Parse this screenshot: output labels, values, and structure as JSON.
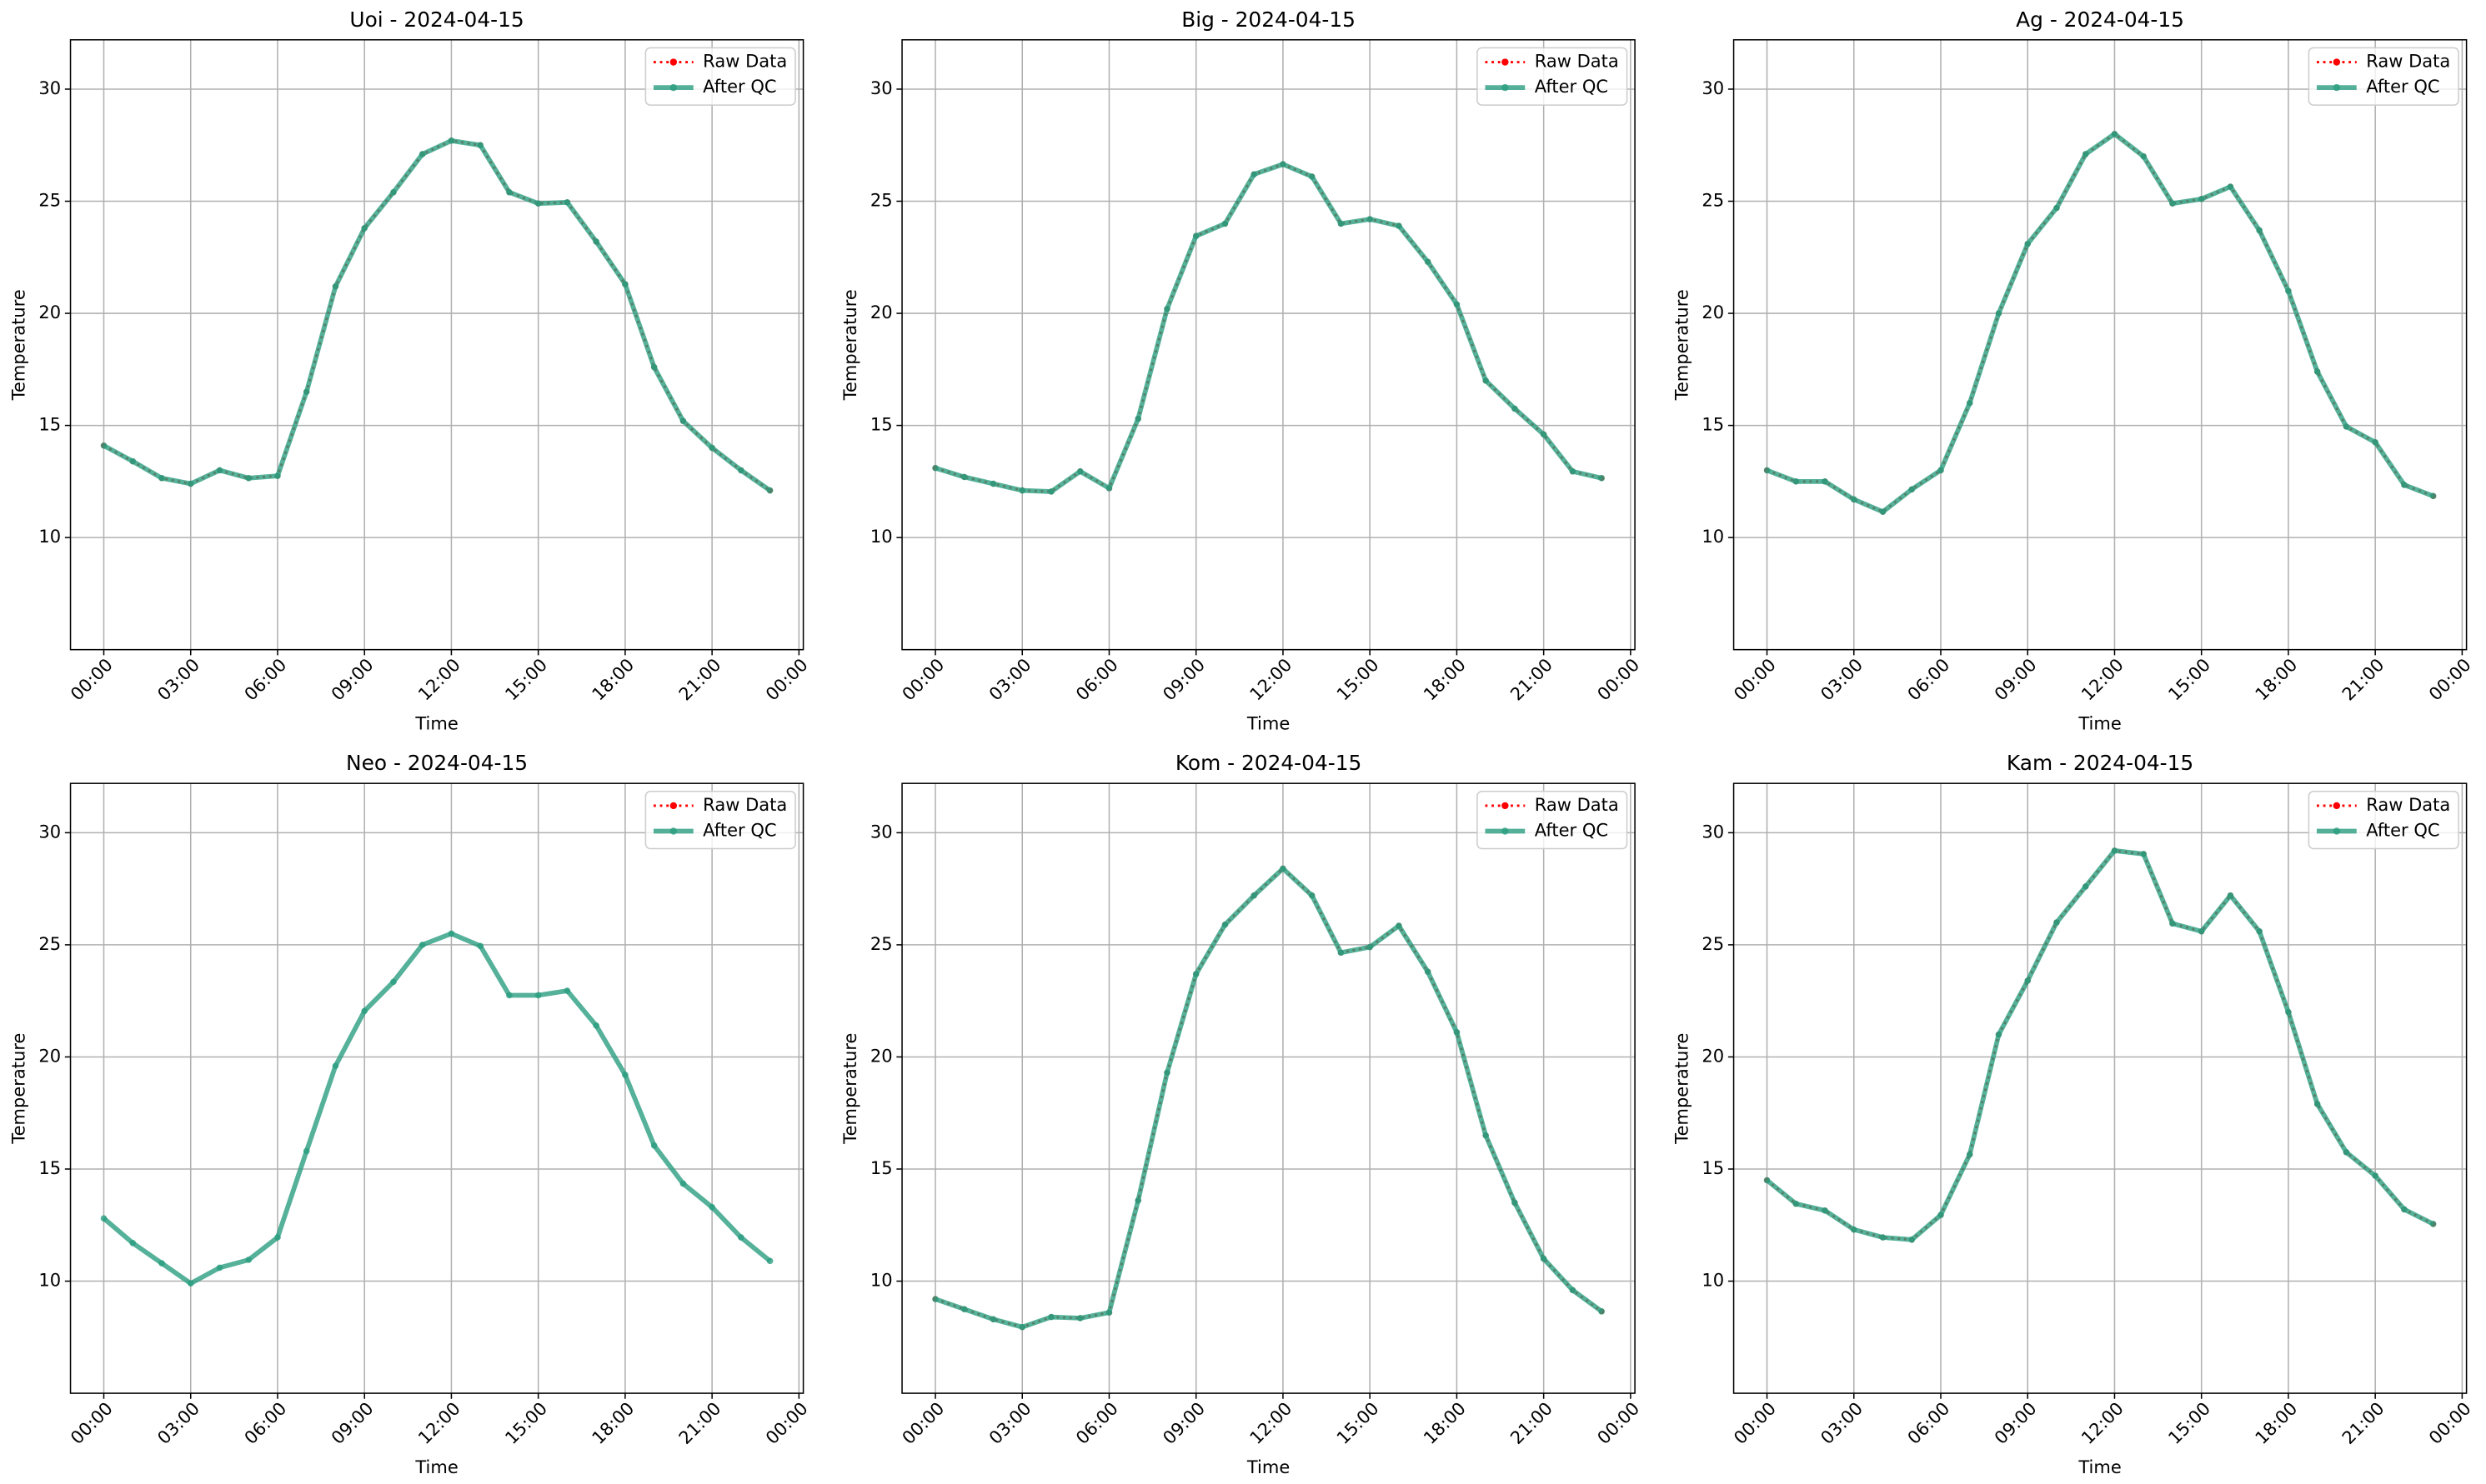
{
  "chart_data": [
    {
      "type": "line",
      "title": "Uoi - 2024-04-15",
      "xlabel": "Time",
      "ylabel": "Temperature",
      "x": [
        0,
        1,
        2,
        3,
        4,
        5,
        6,
        7,
        8,
        9,
        10,
        11,
        12,
        13,
        14,
        15,
        16,
        17,
        18,
        19,
        20,
        21,
        22,
        23
      ],
      "series": [
        {
          "name": "Raw Data",
          "color": "#ff0000",
          "values": [
            14.1,
            13.4,
            12.65,
            12.4,
            13.0,
            12.65,
            12.75,
            16.5,
            21.2,
            23.8,
            25.4,
            27.1,
            27.7,
            27.5,
            25.4,
            24.9,
            24.95,
            23.2,
            21.3,
            17.6,
            15.2,
            14.0,
            13.0,
            12.1
          ]
        },
        {
          "name": "After QC",
          "color": "#2a9d7f",
          "values": [
            14.1,
            13.4,
            12.65,
            12.4,
            13.0,
            12.65,
            12.75,
            16.5,
            21.2,
            23.8,
            25.4,
            27.1,
            27.7,
            27.5,
            25.4,
            24.9,
            24.95,
            23.2,
            21.3,
            17.6,
            15.2,
            14.0,
            13.0,
            12.1
          ]
        }
      ],
      "xlim": [
        -1.15,
        24.15
      ],
      "ylim": [
        5.0,
        32.2
      ],
      "xticks": [
        {
          "value": 0,
          "label": "00:00"
        },
        {
          "value": 3,
          "label": "03:00"
        },
        {
          "value": 6,
          "label": "06:00"
        },
        {
          "value": 9,
          "label": "09:00"
        },
        {
          "value": 12,
          "label": "12:00"
        },
        {
          "value": 15,
          "label": "15:00"
        },
        {
          "value": 18,
          "label": "18:00"
        },
        {
          "value": 21,
          "label": "21:00"
        },
        {
          "value": 24,
          "label": "00:00"
        }
      ],
      "yticks": [
        10,
        15,
        20,
        25,
        30
      ],
      "grid": true,
      "legend": "upper right"
    },
    {
      "type": "line",
      "title": "Big - 2024-04-15",
      "xlabel": "Time",
      "ylabel": "Temperature",
      "x": [
        0,
        1,
        2,
        3,
        4,
        5,
        6,
        7,
        8,
        9,
        10,
        11,
        12,
        13,
        14,
        15,
        16,
        17,
        18,
        19,
        20,
        21,
        22,
        23
      ],
      "series": [
        {
          "name": "Raw Data",
          "color": "#ff0000",
          "values": [
            13.1,
            12.7,
            12.4,
            12.1,
            12.05,
            12.95,
            12.2,
            15.3,
            20.2,
            23.45,
            24.0,
            26.2,
            26.65,
            26.1,
            24.0,
            24.2,
            23.9,
            22.3,
            20.4,
            17.0,
            15.75,
            14.6,
            12.95,
            12.65
          ]
        },
        {
          "name": "After QC",
          "color": "#2a9d7f",
          "values": [
            13.1,
            12.7,
            12.4,
            12.1,
            12.05,
            12.95,
            12.2,
            15.3,
            20.2,
            23.45,
            24.0,
            26.2,
            26.65,
            26.1,
            24.0,
            24.2,
            23.9,
            22.3,
            20.4,
            17.0,
            15.75,
            14.6,
            12.95,
            12.65
          ]
        }
      ],
      "xlim": [
        -1.15,
        24.15
      ],
      "ylim": [
        5.0,
        32.2
      ],
      "xticks": [
        {
          "value": 0,
          "label": "00:00"
        },
        {
          "value": 3,
          "label": "03:00"
        },
        {
          "value": 6,
          "label": "06:00"
        },
        {
          "value": 9,
          "label": "09:00"
        },
        {
          "value": 12,
          "label": "12:00"
        },
        {
          "value": 15,
          "label": "15:00"
        },
        {
          "value": 18,
          "label": "18:00"
        },
        {
          "value": 21,
          "label": "21:00"
        },
        {
          "value": 24,
          "label": "00:00"
        }
      ],
      "yticks": [
        10,
        15,
        20,
        25,
        30
      ],
      "grid": true,
      "legend": "upper right"
    },
    {
      "type": "line",
      "title": "Ag - 2024-04-15",
      "xlabel": "Time",
      "ylabel": "Temperature",
      "x": [
        0,
        1,
        2,
        3,
        4,
        5,
        6,
        7,
        8,
        9,
        10,
        11,
        12,
        13,
        14,
        15,
        16,
        17,
        18,
        19,
        20,
        21,
        22,
        23
      ],
      "series": [
        {
          "name": "Raw Data",
          "color": "#ff0000",
          "values": [
            13.0,
            12.5,
            12.5,
            11.7,
            11.15,
            12.15,
            13.0,
            16.0,
            20.0,
            23.1,
            24.7,
            27.1,
            28.0,
            27.0,
            24.9,
            25.1,
            25.65,
            23.7,
            21.0,
            17.4,
            14.95,
            14.25,
            12.35,
            11.85
          ]
        },
        {
          "name": "After QC",
          "color": "#2a9d7f",
          "values": [
            13.0,
            12.5,
            12.5,
            11.7,
            11.15,
            12.15,
            13.0,
            16.0,
            20.0,
            23.1,
            24.7,
            27.1,
            28.0,
            27.0,
            24.9,
            25.1,
            25.65,
            23.7,
            21.0,
            17.4,
            14.95,
            14.25,
            12.35,
            11.85
          ]
        }
      ],
      "xlim": [
        -1.15,
        24.15
      ],
      "ylim": [
        5.0,
        32.2
      ],
      "xticks": [
        {
          "value": 0,
          "label": "00:00"
        },
        {
          "value": 3,
          "label": "03:00"
        },
        {
          "value": 6,
          "label": "06:00"
        },
        {
          "value": 9,
          "label": "09:00"
        },
        {
          "value": 12,
          "label": "12:00"
        },
        {
          "value": 15,
          "label": "15:00"
        },
        {
          "value": 18,
          "label": "18:00"
        },
        {
          "value": 21,
          "label": "21:00"
        },
        {
          "value": 24,
          "label": "00:00"
        }
      ],
      "yticks": [
        10,
        15,
        20,
        25,
        30
      ],
      "grid": true,
      "legend": "upper right"
    },
    {
      "type": "line",
      "title": "Neo - 2024-04-15",
      "xlabel": "Time",
      "ylabel": "Temperature",
      "x": [
        0,
        1,
        2,
        3,
        4,
        5,
        6,
        7,
        8,
        9,
        10,
        11,
        12,
        13,
        14,
        15,
        16,
        17,
        18,
        19,
        20,
        21,
        22,
        23
      ],
      "series": [
        {
          "name": "Raw Data",
          "color": "#ff0000",
          "values": [
            null,
            null,
            null,
            null,
            null,
            null,
            null,
            null,
            null,
            null,
            null,
            null,
            null,
            null,
            null,
            null,
            null,
            null,
            null,
            null,
            null,
            null,
            null,
            null
          ]
        },
        {
          "name": "After QC",
          "color": "#2a9d7f",
          "values": [
            12.8,
            11.7,
            10.8,
            9.9,
            10.6,
            10.95,
            11.95,
            15.8,
            19.6,
            22.05,
            23.35,
            25.0,
            25.5,
            24.95,
            22.75,
            22.75,
            22.95,
            21.4,
            19.2,
            16.05,
            14.35,
            13.3,
            11.95,
            10.9
          ]
        }
      ],
      "xlim": [
        -1.15,
        24.15
      ],
      "ylim": [
        5.0,
        32.2
      ],
      "xticks": [
        {
          "value": 0,
          "label": "00:00"
        },
        {
          "value": 3,
          "label": "03:00"
        },
        {
          "value": 6,
          "label": "06:00"
        },
        {
          "value": 9,
          "label": "09:00"
        },
        {
          "value": 12,
          "label": "12:00"
        },
        {
          "value": 15,
          "label": "15:00"
        },
        {
          "value": 18,
          "label": "18:00"
        },
        {
          "value": 21,
          "label": "21:00"
        },
        {
          "value": 24,
          "label": "00:00"
        }
      ],
      "yticks": [
        10,
        15,
        20,
        25,
        30
      ],
      "grid": true,
      "legend": "upper right"
    },
    {
      "type": "line",
      "title": "Kom - 2024-04-15",
      "xlabel": "Time",
      "ylabel": "Temperature",
      "x": [
        0,
        1,
        2,
        3,
        4,
        5,
        6,
        7,
        8,
        9,
        10,
        11,
        12,
        13,
        14,
        15,
        16,
        17,
        18,
        19,
        20,
        21,
        22,
        23
      ],
      "series": [
        {
          "name": "Raw Data",
          "color": "#ff0000",
          "values": [
            9.2,
            8.75,
            8.3,
            7.95,
            8.4,
            8.35,
            8.6,
            13.6,
            19.3,
            23.7,
            25.9,
            27.2,
            28.4,
            27.2,
            24.65,
            24.9,
            25.85,
            23.8,
            21.1,
            16.5,
            13.5,
            11.0,
            9.6,
            8.65
          ]
        },
        {
          "name": "After QC",
          "color": "#2a9d7f",
          "values": [
            9.2,
            8.75,
            8.3,
            7.95,
            8.4,
            8.35,
            8.6,
            13.6,
            19.3,
            23.7,
            25.9,
            27.2,
            28.4,
            27.2,
            24.65,
            24.9,
            25.85,
            23.8,
            21.1,
            16.5,
            13.5,
            11.0,
            9.6,
            8.65
          ]
        }
      ],
      "xlim": [
        -1.15,
        24.15
      ],
      "ylim": [
        5.0,
        32.2
      ],
      "xticks": [
        {
          "value": 0,
          "label": "00:00"
        },
        {
          "value": 3,
          "label": "03:00"
        },
        {
          "value": 6,
          "label": "06:00"
        },
        {
          "value": 9,
          "label": "09:00"
        },
        {
          "value": 12,
          "label": "12:00"
        },
        {
          "value": 15,
          "label": "15:00"
        },
        {
          "value": 18,
          "label": "18:00"
        },
        {
          "value": 21,
          "label": "21:00"
        },
        {
          "value": 24,
          "label": "00:00"
        }
      ],
      "yticks": [
        10,
        15,
        20,
        25,
        30
      ],
      "grid": true,
      "legend": "upper right"
    },
    {
      "type": "line",
      "title": "Kam - 2024-04-15",
      "xlabel": "Time",
      "ylabel": "Temperature",
      "x": [
        0,
        1,
        2,
        3,
        4,
        5,
        6,
        7,
        8,
        9,
        10,
        11,
        12,
        13,
        14,
        15,
        16,
        17,
        18,
        19,
        20,
        21,
        22,
        23
      ],
      "series": [
        {
          "name": "Raw Data",
          "color": "#ff0000",
          "values": [
            14.5,
            13.45,
            13.15,
            12.3,
            11.95,
            11.85,
            12.95,
            15.65,
            21.0,
            23.4,
            26.0,
            27.6,
            29.2,
            29.05,
            25.95,
            25.6,
            27.2,
            25.6,
            22.0,
            17.9,
            15.75,
            14.7,
            13.2,
            12.55
          ]
        },
        {
          "name": "After QC",
          "color": "#2a9d7f",
          "values": [
            14.5,
            13.45,
            13.15,
            12.3,
            11.95,
            11.85,
            12.95,
            15.65,
            21.0,
            23.4,
            26.0,
            27.6,
            29.2,
            29.05,
            25.95,
            25.6,
            27.2,
            25.6,
            22.0,
            17.9,
            15.75,
            14.7,
            13.2,
            12.55
          ]
        }
      ],
      "xlim": [
        -1.15,
        24.15
      ],
      "ylim": [
        5.0,
        32.2
      ],
      "xticks": [
        {
          "value": 0,
          "label": "00:00"
        },
        {
          "value": 3,
          "label": "03:00"
        },
        {
          "value": 6,
          "label": "06:00"
        },
        {
          "value": 9,
          "label": "09:00"
        },
        {
          "value": 12,
          "label": "12:00"
        },
        {
          "value": 15,
          "label": "15:00"
        },
        {
          "value": 18,
          "label": "18:00"
        },
        {
          "value": 21,
          "label": "21:00"
        },
        {
          "value": 24,
          "label": "00:00"
        }
      ],
      "yticks": [
        10,
        15,
        20,
        25,
        30
      ],
      "grid": true,
      "legend": "upper right"
    }
  ]
}
